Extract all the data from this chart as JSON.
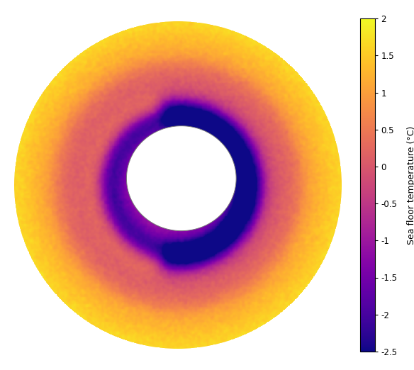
{
  "colorbar_label": "Sea floor temperature (°C)",
  "vmin": -2.5,
  "vmax": 2.0,
  "colorbar_ticks": [
    -2.5,
    -2,
    -1.5,
    -1,
    -0.5,
    0,
    0.5,
    1,
    1.5,
    2
  ],
  "colorbar_tick_labels": [
    "-2.5",
    "-2",
    "-1.5",
    "-1",
    "-0.5",
    "0",
    "0.5",
    "1",
    "1.5",
    "2"
  ],
  "cmap": "plasma",
  "background_color": "#ffffff",
  "figsize": [
    5.84,
    5.22
  ],
  "dpi": 100,
  "seed": 42,
  "outer_temp": 1.2,
  "noise_scale": 0.25
}
